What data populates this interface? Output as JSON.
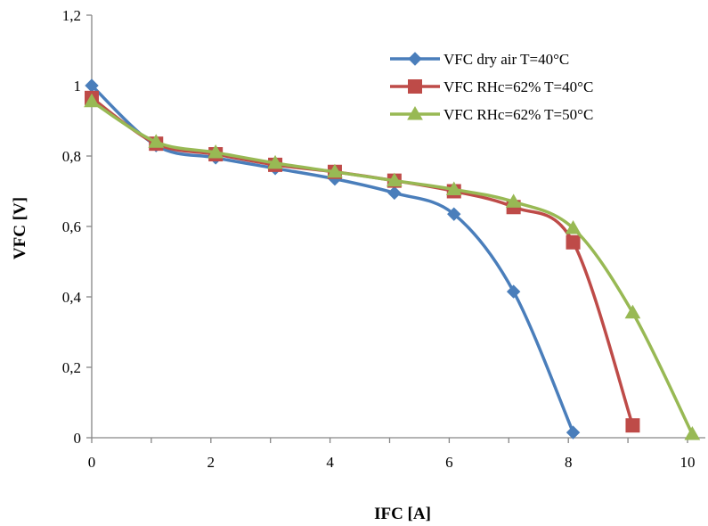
{
  "chart_data": {
    "type": "line",
    "title": "",
    "xlabel": "IFC [A]",
    "ylabel": "VFC [V]",
    "xlim": [
      0,
      10
    ],
    "ylim": [
      0,
      1.2
    ],
    "x_ticks": [
      "0",
      "2",
      "4",
      "6",
      "8",
      "10"
    ],
    "x_tick_values": [
      0,
      2,
      4,
      6,
      8,
      10
    ],
    "y_ticks": [
      "0",
      "0,2",
      "0,4",
      "0,6",
      "0,8",
      "1",
      "1,2"
    ],
    "y_tick_values": [
      0,
      0.2,
      0.4,
      0.6,
      0.8,
      1.0,
      1.2
    ],
    "grid": false,
    "legend_position": "top-right",
    "series": [
      {
        "name": "VFC dry air T=40°C",
        "color": "#4a7ebb",
        "marker": "diamond",
        "x": [
          0,
          1.08,
          2.08,
          3.08,
          4.08,
          5.08,
          6.08,
          7.08,
          8.08
        ],
        "y": [
          1.0,
          0.83,
          0.795,
          0.765,
          0.735,
          0.695,
          0.635,
          0.415,
          0.015
        ]
      },
      {
        "name": "VFC RHc=62% T=40°C",
        "color": "#be4b48",
        "marker": "square",
        "x": [
          0,
          1.08,
          2.08,
          3.08,
          4.08,
          5.08,
          6.08,
          7.08,
          8.08,
          9.08
        ],
        "y": [
          0.965,
          0.835,
          0.805,
          0.775,
          0.755,
          0.73,
          0.7,
          0.655,
          0.555,
          0.035
        ]
      },
      {
        "name": "VFC RHc=62% T=50°C",
        "color": "#98b954",
        "marker": "triangle",
        "x": [
          0,
          1.08,
          2.08,
          3.08,
          4.08,
          5.08,
          6.08,
          7.08,
          8.08,
          9.08,
          10.08
        ],
        "y": [
          0.955,
          0.84,
          0.81,
          0.78,
          0.755,
          0.73,
          0.705,
          0.67,
          0.595,
          0.355,
          0.01
        ]
      }
    ]
  }
}
